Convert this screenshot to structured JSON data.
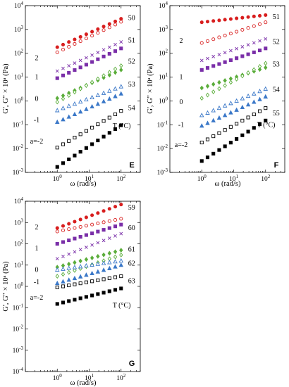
{
  "chart_data": [
    {
      "type": "scatter",
      "panel_label": "E",
      "xlabel": "ω (rad/s)",
      "ylabel": "G', G\" × 10ᵃ (Pa)",
      "xscale": "log",
      "yscale": "log",
      "xlim": [
        0.1,
        400
      ],
      "ylim": [
        0.001,
        10000
      ],
      "xticks": [
        {
          "v": 1,
          "mant": "10",
          "exp": "0"
        },
        {
          "v": 10,
          "mant": "10",
          "exp": "1"
        },
        {
          "v": 100,
          "mant": "10",
          "exp": "2"
        }
      ],
      "yticks": [
        {
          "v": 0.001,
          "mant": "10",
          "exp": "-3"
        },
        {
          "v": 0.01,
          "mant": "10",
          "exp": "-2"
        },
        {
          "v": 0.1,
          "mant": "10",
          "exp": "-1"
        },
        {
          "v": 1,
          "mant": "10",
          "exp": "0"
        },
        {
          "v": 10,
          "mant": "10",
          "exp": "1"
        },
        {
          "v": 100,
          "mant": "10",
          "exp": "2"
        },
        {
          "v": 1000,
          "mant": "10",
          "exp": "3"
        },
        {
          "v": 10000,
          "mant": "10",
          "exp": "4"
        }
      ],
      "shift_labels": [
        {
          "text": "2",
          "y": 62
        },
        {
          "text": "1",
          "y": 10
        },
        {
          "text": "0",
          "y": 1.2
        },
        {
          "text": "-1",
          "y": 0.16
        },
        {
          "text": "a=-2",
          "y": 0.02
        }
      ],
      "temp_unit_label": "T (°C)",
      "temp_unit_y": 0.09,
      "temp_labels": [
        {
          "text": "50",
          "y": 3000
        },
        {
          "text": "51",
          "y": 350
        },
        {
          "text": "52",
          "y": 45
        },
        {
          "text": "53",
          "y": 5
        },
        {
          "text": "54",
          "y": 0.5
        }
      ],
      "series": [
        {
          "color": "#d81e1e",
          "marker": "circle",
          "filled": true,
          "x_range": [
            1,
            100
          ],
          "y_range": [
            180,
            2800
          ]
        },
        {
          "color": "#d81e1e",
          "marker": "circle",
          "filled": false,
          "x_range": [
            1,
            100
          ],
          "y_range": [
            110,
            2100
          ]
        },
        {
          "color": "#7a2fa8",
          "marker": "x",
          "filled": false,
          "x_range": [
            1,
            100
          ],
          "y_range": [
            18,
            300
          ]
        },
        {
          "color": "#7a2fa8",
          "marker": "square",
          "filled": true,
          "x_range": [
            1,
            100
          ],
          "y_range": [
            9,
            160
          ]
        },
        {
          "color": "#5aad3a",
          "marker": "diamond",
          "filled": true,
          "x_range": [
            1,
            100
          ],
          "y_range": [
            1.3,
            20
          ]
        },
        {
          "color": "#5aad3a",
          "marker": "diamond",
          "filled": false,
          "x_range": [
            1,
            100
          ],
          "y_range": [
            0.9,
            30
          ]
        },
        {
          "color": "#3b78c8",
          "marker": "triangle",
          "filled": false,
          "x_range": [
            1,
            100
          ],
          "y_range": [
            0.4,
            4
          ]
        },
        {
          "color": "#3b78c8",
          "marker": "triangle",
          "filled": true,
          "x_range": [
            1,
            100
          ],
          "y_range": [
            0.13,
            2
          ]
        },
        {
          "color": "#000000",
          "marker": "square",
          "filled": false,
          "x_range": [
            1,
            100
          ],
          "y_range": [
            0.011,
            0.38
          ]
        },
        {
          "color": "#000000",
          "marker": "square",
          "filled": true,
          "x_range": [
            1,
            100
          ],
          "y_range": [
            0.0017,
            0.095
          ]
        }
      ]
    },
    {
      "type": "scatter",
      "panel_label": "F",
      "xlabel": "ω (rad/s)",
      "ylabel": "G', G\" × 10ᵃ (Pa)",
      "xscale": "log",
      "yscale": "log",
      "xlim": [
        0.1,
        400
      ],
      "ylim": [
        0.001,
        10000
      ],
      "xticks": [
        {
          "v": 1,
          "mant": "10",
          "exp": "0"
        },
        {
          "v": 10,
          "mant": "10",
          "exp": "1"
        },
        {
          "v": 100,
          "mant": "10",
          "exp": "2"
        }
      ],
      "yticks": [
        {
          "v": 0.001,
          "mant": "10",
          "exp": "-3"
        },
        {
          "v": 0.01,
          "mant": "10",
          "exp": "-2"
        },
        {
          "v": 0.1,
          "mant": "10",
          "exp": "-1"
        },
        {
          "v": 1,
          "mant": "10",
          "exp": "0"
        },
        {
          "v": 10,
          "mant": "10",
          "exp": "1"
        },
        {
          "v": 100,
          "mant": "10",
          "exp": "2"
        },
        {
          "v": 1000,
          "mant": "10",
          "exp": "3"
        },
        {
          "v": 10000,
          "mant": "10",
          "exp": "4"
        }
      ],
      "shift_labels": [
        {
          "text": "2",
          "y": 330
        },
        {
          "text": "1",
          "y": 10
        },
        {
          "text": "0",
          "y": 0.9
        },
        {
          "text": "-1",
          "y": 0.1
        },
        {
          "text": "a=-2",
          "y": 0.014
        }
      ],
      "temp_unit_label": "T (°C)",
      "temp_unit_y": 0.1,
      "temp_labels": [
        {
          "text": "51",
          "y": 3400
        },
        {
          "text": "52",
          "y": 300
        },
        {
          "text": "53",
          "y": 34
        },
        {
          "text": "54",
          "y": 3
        },
        {
          "text": "55",
          "y": 0.3
        }
      ],
      "series": [
        {
          "color": "#d81e1e",
          "marker": "circle",
          "filled": true,
          "x_range": [
            1,
            100
          ],
          "y_range": [
            2000,
            4000
          ]
        },
        {
          "color": "#d81e1e",
          "marker": "circle",
          "filled": false,
          "x_range": [
            1,
            100
          ],
          "y_range": [
            270,
            2000
          ]
        },
        {
          "color": "#7a2fa8",
          "marker": "x",
          "filled": false,
          "x_range": [
            1,
            100
          ],
          "y_range": [
            50,
            400
          ]
        },
        {
          "color": "#7a2fa8",
          "marker": "square",
          "filled": true,
          "x_range": [
            1,
            100
          ],
          "y_range": [
            20,
            160
          ]
        },
        {
          "color": "#5aad3a",
          "marker": "diamond",
          "filled": true,
          "x_range": [
            1,
            100
          ],
          "y_range": [
            3.5,
            25
          ]
        },
        {
          "color": "#5aad3a",
          "marker": "diamond",
          "filled": false,
          "x_range": [
            1,
            100
          ],
          "y_range": [
            1.3,
            38
          ]
        },
        {
          "color": "#3b78c8",
          "marker": "triangle",
          "filled": false,
          "x_range": [
            1,
            100
          ],
          "y_range": [
            0.25,
            3.2
          ]
        },
        {
          "color": "#3b78c8",
          "marker": "triangle",
          "filled": true,
          "x_range": [
            1,
            100
          ],
          "y_range": [
            0.09,
            1.5
          ]
        },
        {
          "color": "#000000",
          "marker": "square",
          "filled": false,
          "x_range": [
            1,
            100
          ],
          "y_range": [
            0.018,
            0.5
          ]
        },
        {
          "color": "#000000",
          "marker": "square",
          "filled": true,
          "x_range": [
            1,
            100
          ],
          "y_range": [
            0.003,
            0.15
          ]
        }
      ]
    },
    {
      "type": "scatter",
      "panel_label": "G",
      "xlabel": "ω (rad/s)",
      "ylabel": "G', G\" × 10ᵃ (Pa)",
      "xscale": "log",
      "yscale": "log",
      "xlim": [
        0.1,
        400
      ],
      "ylim": [
        0.0001,
        10000
      ],
      "xticks": [
        {
          "v": 1,
          "mant": "10",
          "exp": "0"
        },
        {
          "v": 10,
          "mant": "10",
          "exp": "1"
        },
        {
          "v": 100,
          "mant": "10",
          "exp": "2"
        }
      ],
      "yticks": [
        {
          "v": 0.0001,
          "mant": "10",
          "exp": "-4"
        },
        {
          "v": 0.001,
          "mant": "10",
          "exp": "-3"
        },
        {
          "v": 0.01,
          "mant": "10",
          "exp": "-2"
        },
        {
          "v": 0.1,
          "mant": "10",
          "exp": "-1"
        },
        {
          "v": 1,
          "mant": "10",
          "exp": "0"
        },
        {
          "v": 10,
          "mant": "10",
          "exp": "1"
        },
        {
          "v": 100,
          "mant": "10",
          "exp": "2"
        },
        {
          "v": 1000,
          "mant": "10",
          "exp": "3"
        },
        {
          "v": 10000,
          "mant": "10",
          "exp": "4"
        }
      ],
      "shift_labels": [
        {
          "text": "2",
          "y": 600
        },
        {
          "text": "1",
          "y": 60
        },
        {
          "text": "0",
          "y": 6
        },
        {
          "text": "-1",
          "y": 1.6
        },
        {
          "text": "a=-2",
          "y": 0.3
        }
      ],
      "temp_unit_label": "T (°C)",
      "temp_unit_y": 0.13,
      "temp_labels": [
        {
          "text": "59",
          "y": 5000
        },
        {
          "text": "60",
          "y": 550
        },
        {
          "text": "61",
          "y": 55
        },
        {
          "text": "62",
          "y": 12
        },
        {
          "text": "63",
          "y": 1.8
        }
      ],
      "series": [
        {
          "color": "#d81e1e",
          "marker": "circle",
          "filled": true,
          "x_range": [
            1,
            100
          ],
          "y_range": [
            550,
            7000
          ]
        },
        {
          "color": "#d81e1e",
          "marker": "circle",
          "filled": false,
          "x_range": [
            1,
            100
          ],
          "y_range": [
            380,
            1500
          ]
        },
        {
          "color": "#7a2fa8",
          "marker": "square",
          "filled": true,
          "x_range": [
            1,
            100
          ],
          "y_range": [
            100,
            800
          ]
        },
        {
          "color": "#7a2fa8",
          "marker": "x",
          "filled": false,
          "x_range": [
            1,
            100
          ],
          "y_range": [
            20,
            300
          ]
        },
        {
          "color": "#5aad3a",
          "marker": "diamond",
          "filled": true,
          "x_range": [
            1,
            100
          ],
          "y_range": [
            8,
            50
          ]
        },
        {
          "color": "#5aad3a",
          "marker": "diamond",
          "filled": false,
          "x_range": [
            1,
            100
          ],
          "y_range": [
            3,
            30
          ]
        },
        {
          "color": "#3b78c8",
          "marker": "triangle",
          "filled": false,
          "x_range": [
            1,
            100
          ],
          "y_range": [
            6,
            16
          ]
        },
        {
          "color": "#3b78c8",
          "marker": "triangle",
          "filled": true,
          "x_range": [
            1,
            100
          ],
          "y_range": [
            1.4,
            10
          ]
        },
        {
          "color": "#000000",
          "marker": "square",
          "filled": false,
          "x_range": [
            1,
            100
          ],
          "y_range": [
            0.9,
            3
          ]
        },
        {
          "color": "#000000",
          "marker": "square",
          "filled": true,
          "x_range": [
            1,
            100
          ],
          "y_range": [
            0.15,
            0.8
          ]
        }
      ]
    }
  ]
}
